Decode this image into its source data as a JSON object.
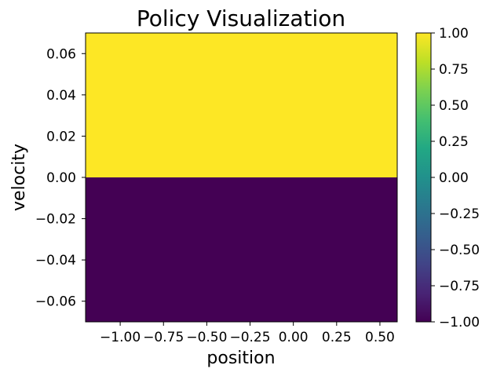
{
  "chart_data": {
    "type": "heatmap",
    "title": "Policy Visualization",
    "xlabel": "position",
    "ylabel": "velocity",
    "xlim": [
      -1.2,
      0.6
    ],
    "ylim": [
      -0.07,
      0.07
    ],
    "x_ticks": [
      -1.0,
      -0.75,
      -0.5,
      -0.25,
      0.0,
      0.25,
      0.5
    ],
    "x_tick_labels": [
      "−1.00",
      "−0.75",
      "−0.50",
      "−0.25",
      "0.00",
      "0.25",
      "0.50"
    ],
    "y_ticks": [
      0.06,
      0.04,
      0.02,
      0.0,
      -0.02,
      -0.04,
      -0.06
    ],
    "y_tick_labels": [
      "0.06",
      "0.04",
      "0.02",
      "0.00",
      "−0.02",
      "−0.04",
      "−0.06"
    ],
    "regions": [
      {
        "velocity_range": [
          0.0,
          0.07
        ],
        "position_range": [
          -1.2,
          0.6
        ],
        "value": 1.0
      },
      {
        "velocity_range": [
          -0.07,
          0.0
        ],
        "position_range": [
          -1.2,
          0.6
        ],
        "value": -1.0
      }
    ],
    "colormap": "viridis",
    "colorbar": {
      "range": [
        -1.0,
        1.0
      ],
      "ticks": [
        1.0,
        0.75,
        0.5,
        0.25,
        0.0,
        -0.25,
        -0.5,
        -0.75,
        -1.0
      ],
      "tick_labels": [
        "1.00",
        "0.75",
        "0.50",
        "0.25",
        "0.00",
        "−0.25",
        "−0.50",
        "−0.75",
        "−1.00"
      ]
    },
    "grid": false,
    "colors": {
      "max": "#fde725",
      "min": "#440154"
    }
  }
}
